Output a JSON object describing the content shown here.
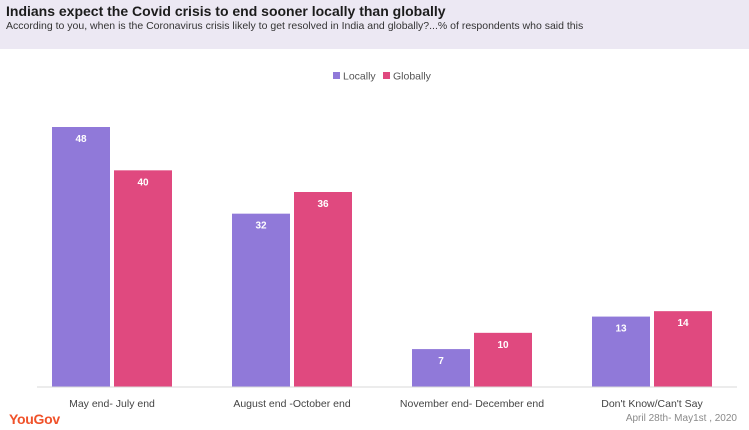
{
  "header": {
    "title": "Indians expect  the Covid crisis to end sooner locally than globally",
    "subtitle": "According to you, when is the Coronavirus crisis likely to get resolved in India and globally?...% of respondents who said this"
  },
  "footer": {
    "logo": "YouGov",
    "date": "April 28th- May1st , 2020"
  },
  "colors": {
    "locally": "#9079d9",
    "globally": "#e0497f"
  },
  "chart_data": {
    "type": "bar",
    "categories": [
      "May end- July end",
      "August end -October end",
      "November end-  December end",
      "Don't Know/Can't Say"
    ],
    "series": [
      {
        "name": "Locally",
        "values": [
          48,
          32,
          7,
          13
        ]
      },
      {
        "name": "Globally",
        "values": [
          40,
          36,
          10,
          14
        ]
      }
    ],
    "ylim": [
      0,
      48
    ],
    "legend": "top-center",
    "grid": false,
    "xlabel": "",
    "ylabel": ""
  }
}
